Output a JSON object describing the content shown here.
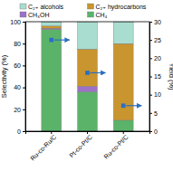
{
  "chart_data": {
    "type": "bar",
    "stacked": true,
    "categories": [
      "Ru-co-Ru/C",
      "Pt-co-Pt/C",
      "Ru-co-Pt/C"
    ],
    "y_label": "Selectivity (%)",
    "y2_label": "Yield (%)",
    "ylim": [
      0,
      100
    ],
    "yticks": [
      0,
      20,
      40,
      60,
      80,
      100
    ],
    "y2lim": [
      0,
      30
    ],
    "y2ticks": [
      0,
      5,
      10,
      15,
      20,
      25,
      30
    ],
    "legend": "top",
    "series": [
      {
        "name": "CH₄",
        "color": "#5bb36a",
        "values": [
          93,
          36,
          10
        ]
      },
      {
        "name": "CH₃OH",
        "color": "#9b72c8",
        "values": [
          1,
          5,
          0
        ]
      },
      {
        "name": "C₂₊ hydrocarbons",
        "color": "#c9952e",
        "values": [
          2,
          34,
          70
        ]
      },
      {
        "name": "C₂₊ alcohols",
        "color": "#a8ddd0",
        "values": [
          4,
          25,
          20
        ]
      },
      {
        "type": "scatter",
        "axis": "y2",
        "color": "#2a6fc0",
        "marker": "square",
        "values": [
          25,
          16,
          7
        ]
      }
    ]
  }
}
